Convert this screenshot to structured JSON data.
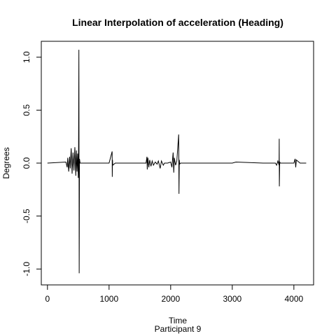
{
  "chart_data": {
    "type": "line",
    "title": "Linear Interpolation of acceleration (Heading)",
    "xlabel": "Time",
    "subtitle": "Participant  9",
    "ylabel": "Degrees",
    "xlim": [
      -100,
      4320
    ],
    "ylim": [
      -1.15,
      1.15
    ],
    "x_ticks": [
      0,
      1000,
      2000,
      3000,
      4000
    ],
    "x_tick_labels": [
      "0",
      "1000",
      "2000",
      "3000",
      "4000"
    ],
    "y_ticks": [
      -1.0,
      -0.5,
      0.0,
      0.5,
      1.0
    ],
    "y_tick_labels": [
      "-1.0",
      "-0.5",
      "0.0",
      "0.5",
      "1.0"
    ],
    "grid": false,
    "legend": "none",
    "line_color": "#000000",
    "series": [
      {
        "x": [
          0,
          300,
          320,
          330,
          345,
          360,
          370,
          385,
          400,
          415,
          430,
          445,
          460,
          470,
          480,
          490,
          500,
          505,
          510,
          515,
          520,
          530,
          600,
          800,
          1000,
          1050,
          1052,
          1056,
          1060,
          1100,
          1400,
          1600,
          1615,
          1620,
          1630,
          1645,
          1660,
          1680,
          1700,
          1720,
          1750,
          1780,
          1800,
          1830,
          1850,
          1880,
          1900,
          1950,
          2000,
          2020,
          2040,
          2050,
          2060,
          2080,
          2100,
          2130,
          2135,
          2140,
          2145,
          2160,
          2300,
          2500,
          3000,
          3060,
          3500,
          3700,
          3720,
          3740,
          3760,
          3762,
          3764,
          3770,
          3780,
          3800,
          4000,
          4020,
          4030,
          4040,
          4100,
          4200
        ],
        "y": [
          0,
          0.01,
          -0.04,
          0.05,
          -0.08,
          0.06,
          -0.05,
          0.14,
          -0.1,
          0.1,
          -0.07,
          0.15,
          -0.12,
          0.12,
          -0.08,
          0.09,
          -0.14,
          0.14,
          1.07,
          -1.04,
          0.04,
          0,
          0,
          0,
          0,
          0.11,
          -0.13,
          0.03,
          -0.02,
          0,
          0,
          0,
          0.06,
          -0.06,
          0.05,
          -0.04,
          0.03,
          -0.03,
          0.02,
          -0.02,
          0.01,
          -0.01,
          0.02,
          -0.05,
          0.02,
          -0.02,
          0,
          0,
          0.01,
          -0.04,
          0.1,
          -0.09,
          0.05,
          -0.02,
          0.02,
          0.27,
          -0.29,
          0.03,
          -0.01,
          0,
          0,
          0,
          0,
          0.01,
          0,
          0,
          -0.02,
          0.02,
          -0.02,
          0.23,
          -0.22,
          0.01,
          0,
          0,
          0,
          0.04,
          -0.04,
          0.03,
          0,
          0
        ]
      }
    ]
  }
}
